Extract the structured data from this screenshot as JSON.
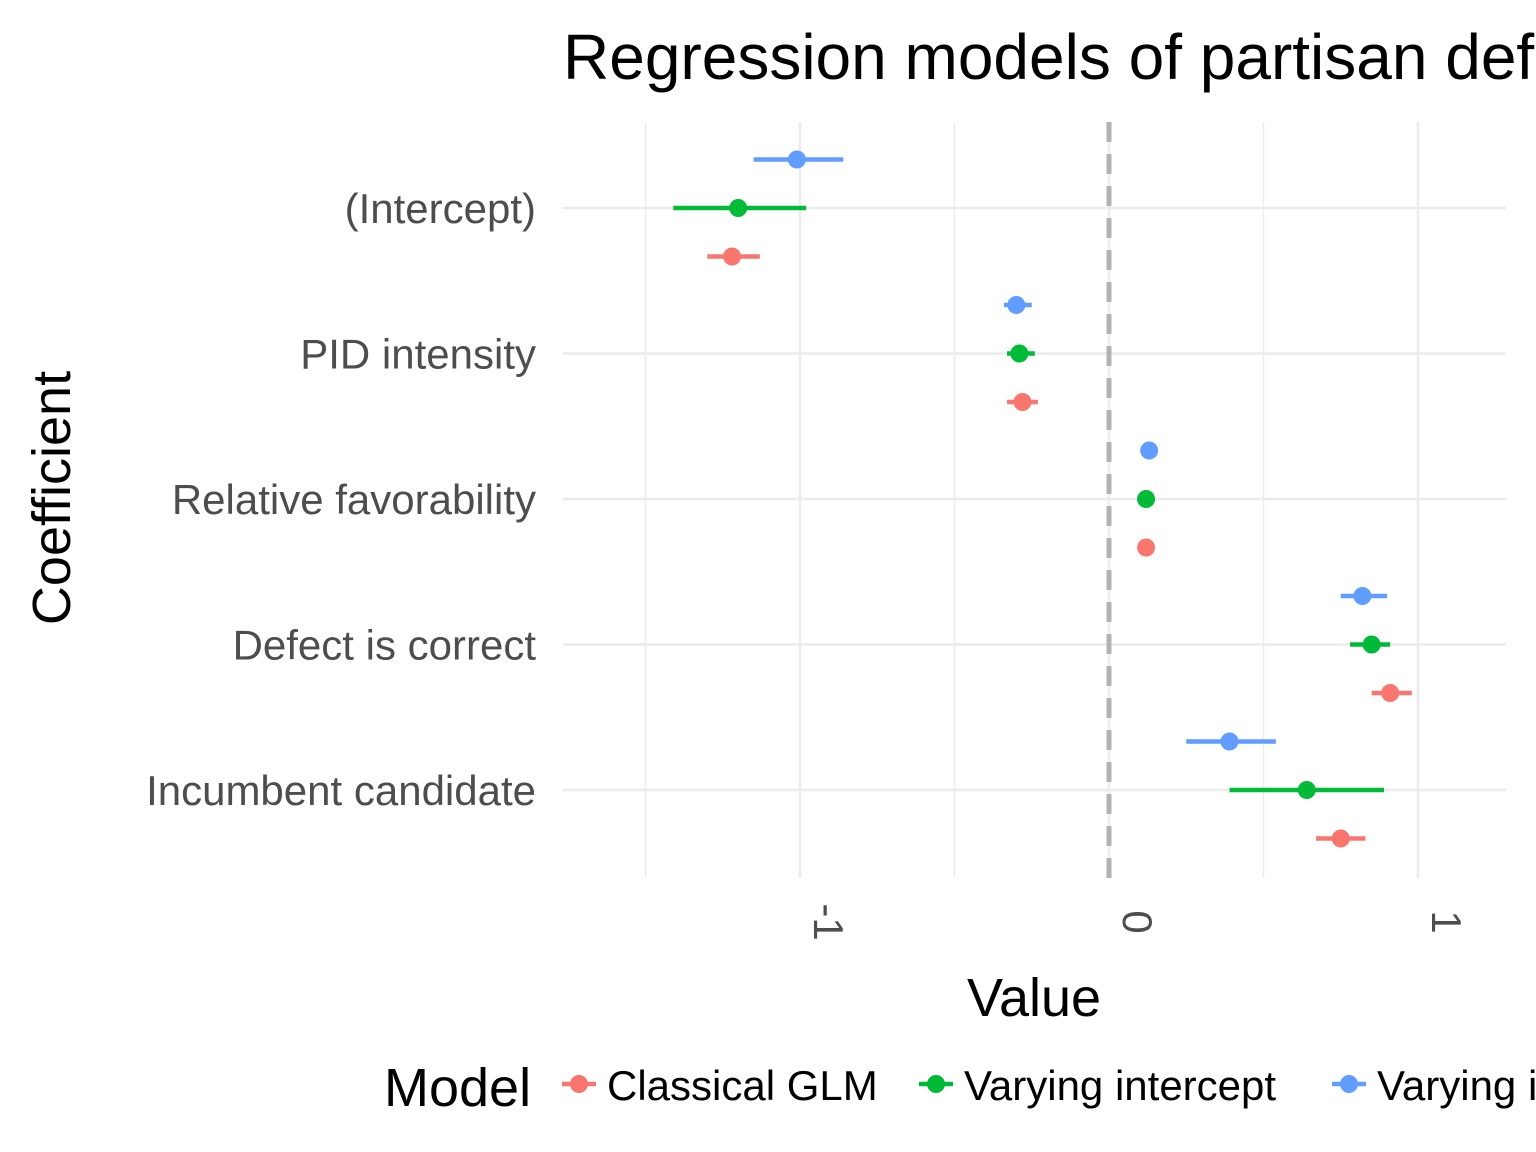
{
  "chart_data": {
    "type": "coefficient-dot-interval",
    "title": "Regression models of partisan defection",
    "xlabel": "Value",
    "ylabel": "Coefficient",
    "xlim": [
      -1.5,
      1.3
    ],
    "xticks": [
      -1,
      0,
      1
    ],
    "xtick_labels": [
      "-1",
      "0",
      "1"
    ],
    "reference_line": {
      "x": 0,
      "style": "dashed"
    },
    "grid": true,
    "categories": [
      "(Intercept)",
      "PID intensity",
      "Relative favorability",
      "Defect is correct",
      "Incumbent candidate"
    ],
    "legend": {
      "title": "Model",
      "position": "bottom"
    },
    "series": [
      {
        "name": "Classical GLM",
        "color": "#F8766D",
        "estimates": [
          -1.22,
          -0.28,
          0.12,
          0.91,
          0.75
        ],
        "lower": [
          -1.3,
          -0.33,
          0.12,
          0.85,
          0.67
        ],
        "upper": [
          -1.13,
          -0.23,
          0.12,
          0.98,
          0.83
        ]
      },
      {
        "name": "Varying intercept",
        "color": "#00BA38",
        "estimates": [
          -1.2,
          -0.29,
          0.12,
          0.85,
          0.64
        ],
        "lower": [
          -1.41,
          -0.33,
          0.12,
          0.78,
          0.39
        ],
        "upper": [
          -0.98,
          -0.24,
          0.12,
          0.91,
          0.89
        ]
      },
      {
        "name": "Varying intercept and slope",
        "color": "#619CFF",
        "estimates": [
          -1.01,
          -0.3,
          0.13,
          0.82,
          0.39
        ],
        "lower": [
          -1.15,
          -0.34,
          0.13,
          0.75,
          0.25
        ],
        "upper": [
          -0.86,
          -0.25,
          0.13,
          0.9,
          0.54
        ]
      }
    ]
  }
}
